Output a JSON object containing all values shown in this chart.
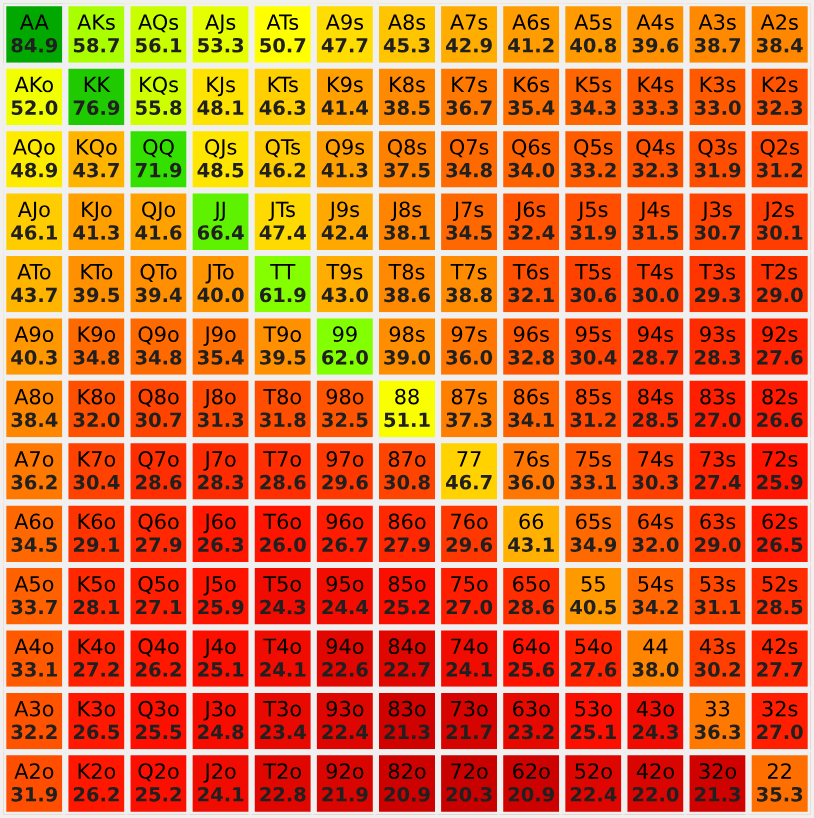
{
  "chart_data": {
    "type": "heatmap",
    "cell_labels": [
      [
        "84.9",
        "58.7",
        "56.1",
        "53.3",
        "50.7",
        "47.7",
        "45.3",
        "42.9",
        "41.2",
        "40.8",
        "39.6",
        "38.7",
        "38.4"
      ],
      [
        "52.0",
        "76.9",
        "55.8",
        "48.1",
        "46.3",
        "41.4",
        "38.5",
        "36.7",
        "35.4",
        "34.3",
        "33.3",
        "33.0",
        "32.3"
      ],
      [
        "48.9",
        "43.7",
        "71.9",
        "48.5",
        "46.2",
        "41.3",
        "37.5",
        "34.8",
        "34.0",
        "33.2",
        "32.3",
        "31.9",
        "31.2"
      ],
      [
        "46.1",
        "41.3",
        "41.6",
        "66.4",
        "47.4",
        "42.4",
        "38.1",
        "34.5",
        "32.4",
        "31.9",
        "31.5",
        "30.7",
        "30.1"
      ],
      [
        "43.7",
        "39.5",
        "39.4",
        "40.0",
        "61.9",
        "43.0",
        "38.6",
        "38.8",
        "32.1",
        "30.6",
        "30.0",
        "29.3",
        "29.0"
      ],
      [
        "40.3",
        "34.8",
        "34.8",
        "35.4",
        "39.5",
        "62.0",
        "39.0",
        "36.0",
        "32.8",
        "30.4",
        "28.7",
        "28.3",
        "27.6"
      ],
      [
        "38.4",
        "32.0",
        "30.7",
        "31.3",
        "31.8",
        "32.5",
        "51.1",
        "37.3",
        "34.1",
        "31.2",
        "28.5",
        "27.0",
        "26.6"
      ],
      [
        "36.2",
        "30.4",
        "28.6",
        "28.3",
        "28.6",
        "29.6",
        "30.8",
        "46.7",
        "36.0",
        "33.1",
        "30.3",
        "27.4",
        "25.9"
      ],
      [
        "34.5",
        "29.1",
        "27.9",
        "26.3",
        "26.0",
        "26.7",
        "27.9",
        "29.6",
        "43.1",
        "34.9",
        "32.0",
        "29.0",
        "26.5"
      ],
      [
        "33.7",
        "28.1",
        "27.1",
        "25.9",
        "24.3",
        "24.4",
        "25.2",
        "27.0",
        "28.6",
        "40.5",
        "34.2",
        "31.1",
        "28.5"
      ],
      [
        "33.1",
        "27.2",
        "26.2",
        "25.1",
        "24.1",
        "22.6",
        "22.7",
        "24.1",
        "25.6",
        "27.6",
        "38.0",
        "30.2",
        "27.7"
      ],
      [
        "32.2",
        "26.5",
        "25.5",
        "24.8",
        "23.4",
        "22.4",
        "21.3",
        "21.7",
        "23.2",
        "25.1",
        "24.3",
        "36.3",
        "27.0"
      ],
      [
        "31.9",
        "26.2",
        "25.2",
        "24.1",
        "22.8",
        "21.9",
        "20.9",
        "20.3",
        "20.9",
        "22.4",
        "22.0",
        "21.3",
        "35.3"
      ]
    ],
    "categories": [
      null,
      null,
      null,
      null,
      null,
      null,
      null,
      null,
      null,
      null,
      null,
      null,
      null
    ],
    "y_categories": [
      null,
      null,
      null,
      null,
      null,
      null,
      null,
      null,
      null,
      null,
      null,
      null,
      null
    ],
    "cells": [
      [
        84.9,
        58.7,
        56.1,
        53.3,
        50.7,
        47.7,
        45.3,
        42.9,
        41.2,
        40.8,
        39.6,
        38.7,
        38.4
      ],
      [
        52.0,
        76.9,
        55.8,
        48.1,
        46.3,
        41.4,
        38.5,
        36.7,
        35.4,
        34.3,
        33.3,
        33.0,
        32.3
      ],
      [
        48.9,
        43.7,
        71.9,
        48.5,
        46.2,
        41.3,
        37.5,
        34.8,
        34.0,
        33.2,
        32.3,
        31.9,
        31.2
      ],
      [
        46.1,
        41.3,
        41.6,
        66.4,
        47.4,
        42.4,
        38.1,
        34.5,
        32.4,
        31.9,
        31.5,
        30.7,
        30.1
      ],
      [
        43.7,
        39.5,
        39.4,
        40.0,
        61.9,
        43.0,
        38.6,
        38.8,
        32.1,
        30.6,
        30.0,
        29.3,
        29.0
      ],
      [
        40.3,
        34.8,
        34.8,
        35.4,
        39.5,
        62.0,
        39.0,
        36.0,
        32.8,
        30.4,
        28.7,
        28.3,
        27.6
      ],
      [
        38.4,
        32.0,
        30.7,
        31.3,
        31.8,
        32.5,
        51.1,
        37.3,
        34.1,
        31.2,
        28.5,
        27.0,
        26.6
      ],
      [
        36.2,
        30.4,
        28.6,
        28.3,
        28.6,
        29.6,
        30.8,
        46.7,
        36.0,
        33.1,
        30.3,
        27.4,
        25.9
      ],
      [
        34.5,
        29.1,
        27.9,
        26.3,
        26.0,
        26.7,
        27.9,
        29.6,
        43.1,
        34.9,
        32.0,
        29.0,
        26.5
      ],
      [
        33.7,
        28.1,
        27.1,
        25.9,
        24.3,
        24.4,
        25.2,
        27.0,
        28.6,
        40.5,
        34.2,
        31.1,
        28.5
      ],
      [
        33.1,
        27.2,
        26.2,
        25.1,
        24.1,
        22.6,
        22.7,
        24.1,
        25.6,
        27.6,
        38.0,
        30.2,
        27.7
      ],
      [
        32.2,
        26.5,
        25.5,
        24.8,
        23.4,
        22.4,
        21.3,
        21.7,
        23.2,
        25.1,
        24.3,
        36.3,
        27.0
      ],
      [
        31.9,
        26.2,
        25.2,
        24.1,
        22.8,
        21.9,
        20.9,
        20.3,
        20.9,
        22.4,
        22.0,
        21.3,
        35.3
      ]
    ],
    "annotations": [
      "AA",
      "AKs",
      "AQs",
      "AJs",
      "ATs",
      "A9s",
      "A8s",
      "A7s",
      "A6s",
      "A5s",
      "A4s",
      "A3s",
      "A2s",
      "AKo",
      "KK",
      "KQs",
      "KJs",
      "KTs",
      "K9s",
      "K8s",
      "K7s",
      "K6s",
      "K5s",
      "K4s",
      "K3s",
      "K2s",
      "AQo",
      "KQo",
      "QQ",
      "QJs",
      "QTs",
      "Q9s",
      "Q8s",
      "Q7s",
      "Q6s",
      "Q5s",
      "Q4s",
      "Q3s",
      "Q2s",
      "AJo",
      "KJo",
      "QJo",
      "JJ",
      "JTs",
      "J9s",
      "J8s",
      "J7s",
      "J6s",
      "J5s",
      "J4s",
      "J3s",
      "J2s",
      "ATo",
      "KTo",
      "QTo",
      "JTo",
      "TT",
      "T9s",
      "T8s",
      "T7s",
      "T6s",
      "T5s",
      "T4s",
      "T3s",
      "T2s",
      "A9o",
      "K9o",
      "Q9o",
      "J9o",
      "T9o",
      "99",
      "98s",
      "97s",
      "96s",
      "95s",
      "94s",
      "93s",
      "92s",
      "A8o",
      "K8o",
      "Q8o",
      "J8o",
      "T8o",
      "98o",
      "88",
      "87s",
      "86s",
      "85s",
      "84s",
      "83s",
      "82s",
      "A7o",
      "K7o",
      "Q7o",
      "J7o",
      "T7o",
      "97o",
      "87o",
      "77",
      "76s",
      "75s",
      "74s",
      "73s",
      "72s",
      "A6o",
      "K6o",
      "Q6o",
      "J6o",
      "T6o",
      "96o",
      "86o",
      "76o",
      "66",
      "65s",
      "64s",
      "63s",
      "62s",
      "A5o",
      "K5o",
      "Q5o",
      "J5o",
      "T5o",
      "95o",
      "85o",
      "75o",
      "65o",
      "55",
      "54s",
      "53s",
      "52s",
      "A4o",
      "K4o",
      "Q4o",
      "J4o",
      "T4o",
      "94o",
      "84o",
      "74o",
      "64o",
      "54o",
      "44",
      "43s",
      "42s",
      "A3o",
      "K3o",
      "Q3o",
      "J3o",
      "T3o",
      "93o",
      "83o",
      "73o",
      "63o",
      "53o",
      "43o",
      "33",
      "32s",
      "A2o",
      "K2o",
      "Q2o",
      "J2o",
      "T2o",
      "92o",
      "82o",
      "72o",
      "62o",
      "52o",
      "42o",
      "32o",
      "22"
    ]
  }
}
